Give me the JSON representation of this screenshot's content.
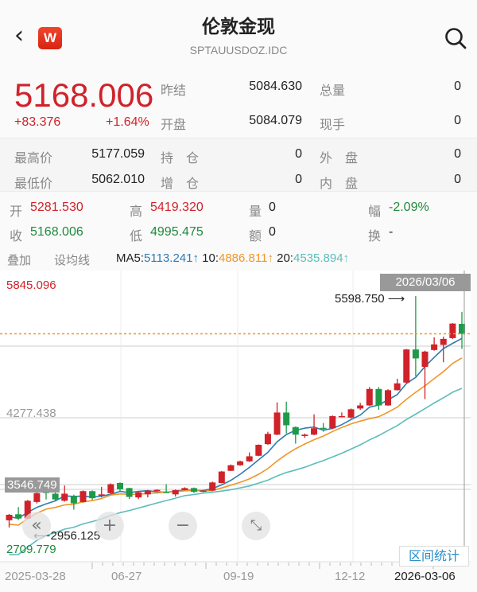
{
  "header": {
    "title": "伦敦金现",
    "subtitle": "SPTAUUSDOZ.IDC",
    "back_icon": "chevron-left-icon",
    "logo_letter": "W",
    "search_icon": "search-icon"
  },
  "quote": {
    "price": "5168.006",
    "change": "+83.376",
    "change_pct": "+1.64%",
    "rows": [
      {
        "l1": "昨结",
        "v1": "5084.630",
        "l2": "总量",
        "v2": "0"
      },
      {
        "l1": "开盘",
        "v1": "5084.079",
        "l2": "现手",
        "v2": "0"
      }
    ]
  },
  "stats": [
    {
      "l1": "最高价",
      "v1": "5177.059",
      "l2": "持　仓",
      "v2": "0",
      "l3": "外　盘",
      "v3": "0"
    },
    {
      "l1": "最低价",
      "v1": "5062.010",
      "l2": "增　仓",
      "v2": "0",
      "l3": "内　盘",
      "v3": "0"
    }
  ],
  "candle_info": {
    "open_l": "开",
    "open": "5281.530",
    "high_l": "高",
    "high": "5419.320",
    "vol_l": "量",
    "vol": "0",
    "amp_l": "幅",
    "amp": "-2.09%",
    "close_l": "收",
    "close": "5168.006",
    "low_l": "低",
    "low": "4995.475",
    "amt_l": "额",
    "amt": "0",
    "turn_l": "换",
    "turn": "-"
  },
  "ma_bar": {
    "overlay": "叠加",
    "set_ma": "设均线",
    "ma5_l": "MA5:",
    "ma5": "5113.241↑",
    "ma10_l": "10:",
    "ma10": "4886.811↑",
    "ma20_l": "20:",
    "ma20": "4535.894↑"
  },
  "colors": {
    "up": "#d0222a",
    "down": "#1e9a48",
    "ma5": "#2f7bb0",
    "ma10": "#f0962a",
    "ma20": "#5cbdb9",
    "last_price_line": "#f0962a"
  },
  "chart": {
    "y_max_label": "5845.096",
    "y_mid_label": "4277.438",
    "y_min_label": "2709.779",
    "y_marker_label": "3546.749",
    "crosshair_date": "2026/03/06",
    "max_annotation": "5598.750 ⟶",
    "min_annotation": "⟵2956.125",
    "x_labels": [
      "2025-03-28",
      "06-27",
      "09-19",
      "12-12",
      "2026-03-06"
    ],
    "range_stats_button": "区间统计",
    "controls": [
      "«",
      "+",
      "−",
      "⤡"
    ]
  },
  "chart_data": {
    "type": "candlestick",
    "ylim": [
      2709.779,
      5845.096
    ],
    "x_labels": [
      "2025-03-28",
      "06-27",
      "09-19",
      "12-12",
      "2026-03-06"
    ],
    "last_price": 5168.006,
    "ohlc": [
      [
        3038,
        3110,
        2956.125,
        3101
      ],
      [
        3107,
        3189,
        3040,
        3058
      ],
      [
        3058,
        3270,
        3050,
        3261
      ],
      [
        3247,
        3377,
        3230,
        3348
      ],
      [
        3363,
        3435,
        3276,
        3356
      ],
      [
        3342,
        3360,
        3260,
        3276
      ],
      [
        3261,
        3435,
        3250,
        3342
      ],
      [
        3319,
        3330,
        3160,
        3232
      ],
      [
        3247,
        3380,
        3240,
        3371
      ],
      [
        3371,
        3380,
        3270,
        3290
      ],
      [
        3319,
        3420,
        3300,
        3334
      ],
      [
        3348,
        3460,
        3340,
        3450
      ],
      [
        3464,
        3470,
        3370,
        3392
      ],
      [
        3406,
        3410,
        3280,
        3305
      ],
      [
        3299,
        3370,
        3280,
        3357
      ],
      [
        3334,
        3385,
        3300,
        3377
      ],
      [
        3380,
        3392,
        3370,
        3386
      ],
      [
        3363,
        3450,
        3350,
        3360
      ],
      [
        3334,
        3390,
        3310,
        3383
      ],
      [
        3386,
        3415,
        3380,
        3406
      ],
      [
        3406,
        3412,
        3350,
        3363
      ],
      [
        3371,
        3385,
        3360,
        3377
      ],
      [
        3377,
        3480,
        3370,
        3470
      ],
      [
        3464,
        3600,
        3460,
        3595
      ],
      [
        3603,
        3675,
        3600,
        3667
      ],
      [
        3667,
        3720,
        3660,
        3711
      ],
      [
        3711,
        3813,
        3705,
        3769
      ],
      [
        3775,
        3905,
        3770,
        3900
      ],
      [
        3908,
        4049,
        3900,
        4025
      ],
      [
        4016,
        4385,
        4010,
        4269
      ],
      [
        4269,
        4393,
        4031,
        4123
      ],
      [
        4103,
        4110,
        3914,
        4016
      ],
      [
        4000,
        4030,
        3980,
        4016
      ],
      [
        4016,
        4248,
        4010,
        4089
      ],
      [
        4094,
        4150,
        4050,
        4089
      ],
      [
        4089,
        4235,
        4080,
        4228
      ],
      [
        4225,
        4270,
        4215,
        4228
      ],
      [
        4211,
        4315,
        4200,
        4306
      ],
      [
        4315,
        4379,
        4300,
        4350
      ],
      [
        4350,
        4560,
        4345,
        4538
      ],
      [
        4538,
        4560,
        4300,
        4350
      ],
      [
        4350,
        4535,
        4345,
        4524
      ],
      [
        4524,
        4655,
        4520,
        4602
      ],
      [
        4611,
        4995,
        4605,
        4989
      ],
      [
        4989,
        5598.75,
        4684,
        4887
      ],
      [
        4791,
        4975,
        4422,
        4965
      ],
      [
        4983,
        5128,
        4975,
        5047
      ],
      [
        5041,
        5135,
        4843,
        5110
      ],
      [
        5119,
        5290,
        5110,
        5285
      ],
      [
        5281.53,
        5419.32,
        4995.475,
        5168.006
      ]
    ]
  }
}
